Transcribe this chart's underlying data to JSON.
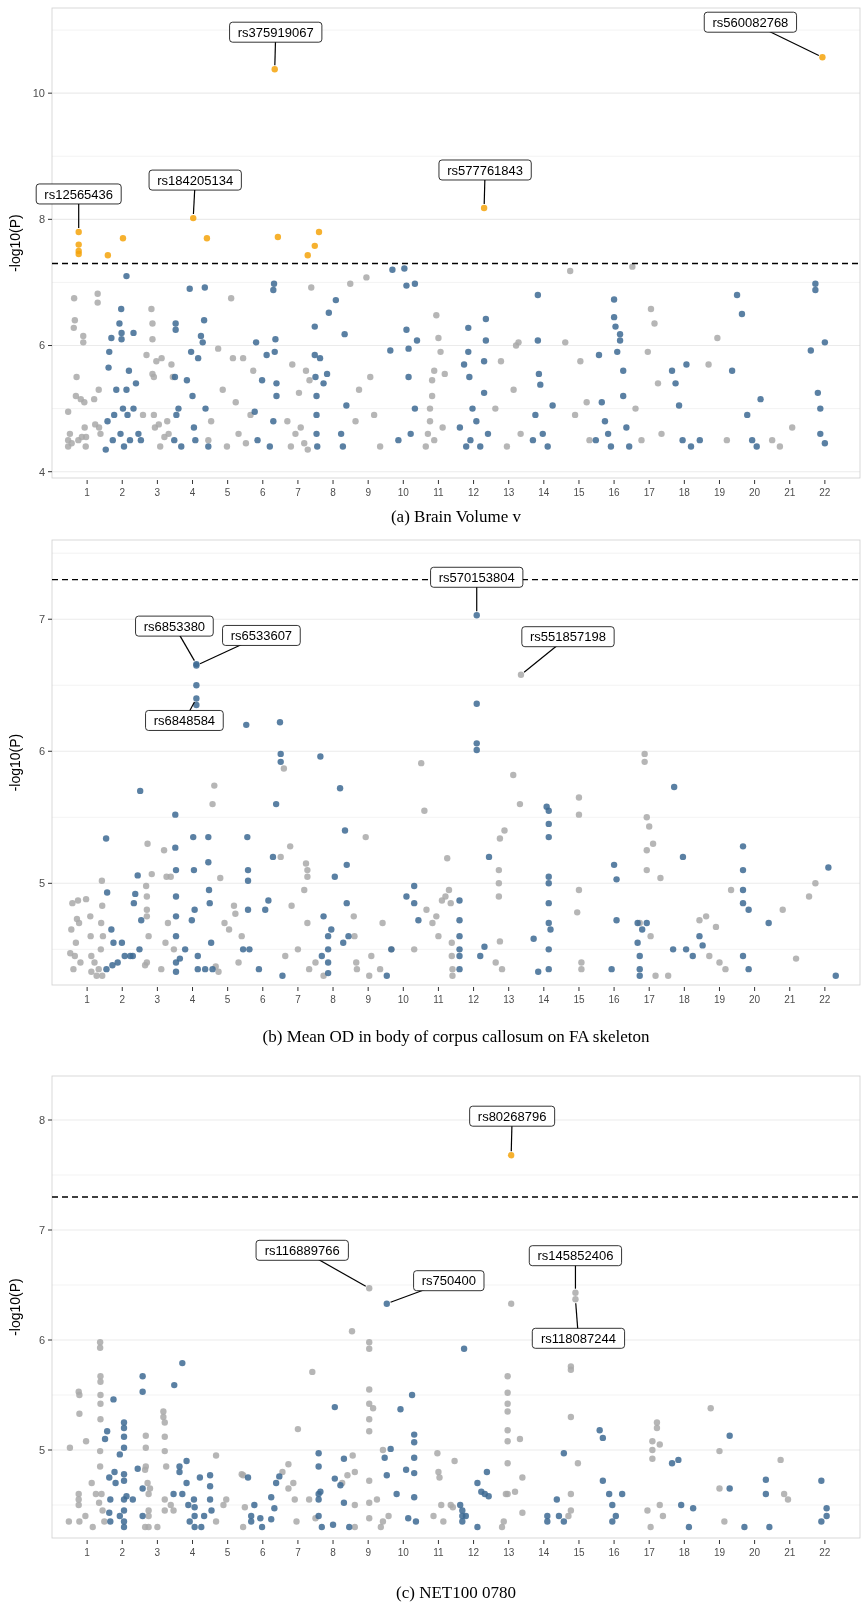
{
  "chart_data": [
    {
      "type": "scatter",
      "title": "(a) Brain Volume v",
      "ylabel": "-log10(P)",
      "xlim": [
        0,
        23
      ],
      "ylim": [
        3.9,
        11.35
      ],
      "xticks": [
        1,
        2,
        3,
        4,
        5,
        6,
        7,
        8,
        9,
        10,
        11,
        12,
        13,
        14,
        15,
        16,
        17,
        18,
        19,
        20,
        21,
        22
      ],
      "yticks": [
        4,
        {
          "value": 5,
          "label": null
        },
        6,
        {
          "value": 7,
          "label": null
        },
        8,
        {
          "value": 9,
          "label": null
        },
        10,
        {
          "value": 11,
          "label": null
        }
      ],
      "grid": "y",
      "marker": "circle",
      "ref_lines": [
        {
          "axis": "y",
          "value": 7.3,
          "color": "#000000",
          "line_style": "dashed"
        }
      ],
      "annotations": [
        {
          "text": "rs12565436",
          "x": 0.76,
          "y": 7.8
        },
        {
          "text": "rs184205134",
          "x": 4.02,
          "y": 8.02
        },
        {
          "text": "rs375919067",
          "x": 6.34,
          "y": 10.38
        },
        {
          "text": "rs577761843",
          "x": 12.3,
          "y": 8.18
        },
        {
          "text": "rs560082768",
          "x": 21.93,
          "y": 10.57
        }
      ],
      "series": [
        {
          "color": "#a9a9a9",
          "x": [
            0.46,
            0.46,
            0.46,
            0.51,
            0.56,
            0.63,
            0.62,
            0.65,
            0.68,
            0.7,
            0.75,
            0.82,
            0.85,
            0.89,
            0.89,
            0.92,
            0.93,
            0.96,
            0.97,
            1.2,
            1.23,
            1.3,
            1.3,
            1.33,
            1.34,
            1.38,
            2.59,
            2.69,
            2.83,
            2.86,
            2.86,
            2.86,
            2.9,
            2.9,
            2.93,
            2.97,
            3.04,
            3.08,
            3.12,
            3.2,
            3.28,
            3.32,
            3.4,
            3.44,
            4.45,
            4.53,
            4.73,
            4.86,
            4.98,
            5.1,
            5.15,
            5.23,
            5.31,
            5.44,
            5.52,
            5.65,
            5.73,
            6.7,
            6.8,
            6.84,
            6.93,
            7.03,
            7.08,
            7.18,
            7.23,
            7.38,
            7.33,
            7.28,
            8.49,
            8.64,
            8.74,
            8.95,
            9.06,
            9.17,
            9.34,
            10.64,
            10.7,
            10.76,
            10.76,
            10.82,
            10.82,
            10.88,
            10.88,
            10.94,
            11.0,
            11.06,
            11.12,
            11.18,
            12.62,
            12.78,
            12.95,
            13.14,
            13.21,
            13.28,
            13.34,
            14.61,
            14.75,
            14.89,
            15.04,
            15.22,
            15.3,
            16.52,
            16.61,
            16.78,
            16.96,
            17.05,
            17.15,
            17.25,
            17.35,
            18.69,
            18.94,
            19.21,
            20.5,
            20.72,
            21.07
          ],
          "values": [
            4.4,
            4.5,
            4.95,
            4.6,
            4.45,
            6.75,
            6.28,
            6.4,
            5.2,
            5.5,
            4.5,
            5.15,
            4.55,
            6.15,
            6.05,
            5.1,
            4.7,
            4.4,
            4.55,
            5.15,
            4.75,
            6.82,
            6.68,
            5.3,
            4.7,
            4.6,
            4.9,
            5.85,
            6.58,
            6.35,
            6.1,
            5.55,
            5.5,
            4.9,
            4.7,
            5.75,
            4.75,
            4.4,
            5.8,
            4.55,
            4.8,
            4.6,
            5.7,
            5.5,
            4.5,
            4.8,
            5.95,
            5.3,
            4.4,
            6.75,
            5.8,
            5.1,
            4.6,
            5.8,
            4.45,
            4.9,
            5.6,
            4.8,
            4.4,
            5.7,
            4.6,
            5.25,
            4.7,
            4.45,
            5.6,
            6.92,
            5.45,
            4.35,
            6.98,
            4.8,
            5.3,
            7.08,
            5.5,
            4.9,
            4.4,
            4.4,
            4.6,
            4.8,
            5.0,
            5.2,
            5.45,
            5.6,
            4.5,
            6.48,
            6.12,
            5.9,
            4.7,
            5.55,
            5.0,
            5.75,
            4.4,
            5.3,
            6.0,
            6.05,
            4.6,
            6.05,
            7.18,
            4.9,
            5.75,
            5.1,
            4.5,
            7.25,
            5.0,
            4.5,
            5.9,
            6.58,
            6.35,
            5.4,
            4.6,
            5.7,
            6.12,
            4.5,
            4.5,
            4.4,
            4.7
          ]
        },
        {
          "color": "#3d6a93",
          "x": [
            1.53,
            1.58,
            1.61,
            1.63,
            1.69,
            1.73,
            1.77,
            1.83,
            1.92,
            1.95,
            1.97,
            1.98,
            1.98,
            2.02,
            2.05,
            2.12,
            2.12,
            2.15,
            2.19,
            2.22,
            2.32,
            2.32,
            2.39,
            2.46,
            2.53,
            3.48,
            3.5,
            3.52,
            3.52,
            3.54,
            3.6,
            3.68,
            3.84,
            3.92,
            3.96,
            4.0,
            4.04,
            4.08,
            4.16,
            4.24,
            4.29,
            4.33,
            4.35,
            4.37,
            4.45,
            5.77,
            5.81,
            5.85,
            5.98,
            6.11,
            6.2,
            6.3,
            6.32,
            6.34,
            6.36,
            6.39,
            6.39,
            6.3,
            7.48,
            7.48,
            7.5,
            7.53,
            7.53,
            7.53,
            7.55,
            7.63,
            7.73,
            7.83,
            7.88,
            8.08,
            8.23,
            8.28,
            8.33,
            8.38,
            9.63,
            9.69,
            9.86,
            10.03,
            10.09,
            10.09,
            10.15,
            10.15,
            10.21,
            10.33,
            10.39,
            10.33,
            11.61,
            11.73,
            11.79,
            11.85,
            11.85,
            11.88,
            11.91,
            11.97,
            12.08,
            12.19,
            12.3,
            12.35,
            12.35,
            12.3,
            12.41,
            13.69,
            13.76,
            13.83,
            13.83,
            13.86,
            13.9,
            13.97,
            14.11,
            14.25,
            15.48,
            15.57,
            15.65,
            15.74,
            15.83,
            15.91,
            16.0,
            16.0,
            16.04,
            16.09,
            16.17,
            16.17,
            16.26,
            16.26,
            16.35,
            16.43,
            17.65,
            17.75,
            17.85,
            17.95,
            18.06,
            18.19,
            18.44,
            19.36,
            19.5,
            19.64,
            19.79,
            19.93,
            20.17,
            20.06,
            21.6,
            21.73,
            21.73,
            21.8,
            21.87,
            21.87,
            22.0,
            22.0
          ],
          "values": [
            4.35,
            4.8,
            5.65,
            5.9,
            6.12,
            4.5,
            4.9,
            5.3,
            6.35,
            4.6,
            6.58,
            6.2,
            6.1,
            5.0,
            4.4,
            7.1,
            5.3,
            4.9,
            5.6,
            4.5,
            6.2,
            5.0,
            5.4,
            4.6,
            4.5,
            4.5,
            5.5,
            6.35,
            6.25,
            4.9,
            5.0,
            4.4,
            5.45,
            6.9,
            5.9,
            5.2,
            4.7,
            4.5,
            5.8,
            6.15,
            6.05,
            6.4,
            6.92,
            5.0,
            4.4,
            4.95,
            6.05,
            4.5,
            5.45,
            5.85,
            4.4,
            6.88,
            6.98,
            5.9,
            6.1,
            5.4,
            5.2,
            4.8,
            6.3,
            5.85,
            5.5,
            5.2,
            4.9,
            4.6,
            4.4,
            5.8,
            5.4,
            5.55,
            6.52,
            6.72,
            4.6,
            4.4,
            6.18,
            5.05,
            5.92,
            7.2,
            4.5,
            7.22,
            6.95,
            6.25,
            5.95,
            5.5,
            4.6,
            6.98,
            6.08,
            5.0,
            4.7,
            5.7,
            4.4,
            6.28,
            5.9,
            5.5,
            4.5,
            5.0,
            4.8,
            4.4,
            5.75,
            6.42,
            6.08,
            5.25,
            4.6,
            4.5,
            4.9,
            6.8,
            6.08,
            5.55,
            5.38,
            4.6,
            4.4,
            5.05,
            4.5,
            5.85,
            5.1,
            4.8,
            4.6,
            4.4,
            6.73,
            6.45,
            6.3,
            5.9,
            6.18,
            6.08,
            5.6,
            5.2,
            4.7,
            4.4,
            5.6,
            5.4,
            5.05,
            4.5,
            5.7,
            4.4,
            4.5,
            5.6,
            6.8,
            6.5,
            4.9,
            4.5,
            5.15,
            4.4,
            5.92,
            6.98,
            6.88,
            5.25,
            5.0,
            4.6,
            6.05,
            4.45
          ]
        },
        {
          "color": "#f5a30a",
          "x": [
            0.76,
            0.76,
            0.76,
            0.76,
            1.59,
            2.02,
            4.02,
            4.41,
            6.34,
            6.43,
            7.28,
            7.48,
            7.6,
            12.3,
            21.93
          ],
          "values": [
            7.8,
            7.6,
            7.5,
            7.45,
            7.43,
            7.7,
            8.02,
            7.7,
            10.38,
            7.72,
            7.43,
            7.58,
            7.8,
            8.18,
            10.57
          ]
        }
      ]
    },
    {
      "type": "scatter",
      "title": "(b) Mean OD in body of corpus callosum on FA skeleton",
      "ylabel": "-log10(P)",
      "xlim": [
        0,
        23
      ],
      "ylim": [
        4.23,
        7.6
      ],
      "xticks": [
        1,
        2,
        3,
        4,
        5,
        6,
        7,
        8,
        9,
        10,
        11,
        12,
        13,
        14,
        15,
        16,
        17,
        18,
        19,
        20,
        21,
        22
      ],
      "yticks": [
        {
          "value": 4.5,
          "label": null
        },
        5,
        {
          "value": 5.5,
          "label": null
        },
        6,
        {
          "value": 6.5,
          "label": null
        },
        7,
        {
          "value": 7.5,
          "label": null
        }
      ],
      "grid": "y",
      "marker": "circle",
      "ref_lines": [
        {
          "axis": "y",
          "value": 7.3,
          "color": "#000000",
          "line_style": "dashed"
        }
      ],
      "annotations": [
        {
          "text": "rs570153804",
          "x": 12.09,
          "y": 7.03
        },
        {
          "text": "rs6853380",
          "x": 4.11,
          "y": 6.66
        },
        {
          "text": "rs6533607",
          "x": 4.11,
          "y": 6.65
        },
        {
          "text": "rs6848584",
          "x": 4.11,
          "y": 6.4
        },
        {
          "text": "rs551857198",
          "x": 13.35,
          "y": 6.58
        }
      ],
      "series": [
        {
          "color": "#a9a9a9",
          "x": [
            0.52,
            0.55,
            0.58,
            0.61,
            0.65,
            0.68,
            0.71,
            0.74,
            0.77,
            0.81,
            0.97,
            1.09,
            1.1,
            1.12,
            1.12,
            1.21,
            1.27,
            1.33,
            1.39,
            1.4,
            1.42,
            1.43,
            1.45,
            1.43,
            2.65,
            2.68,
            2.7,
            2.7,
            2.7,
            2.72,
            2.75,
            2.7,
            2.84,
            3.11,
            3.19,
            3.23,
            3.26,
            3.3,
            3.38,
            3.47,
            4.57,
            4.62,
            4.66,
            4.74,
            4.79,
            4.91,
            5.04,
            5.18,
            5.22,
            5.31,
            5.4,
            6.51,
            6.6,
            6.64,
            6.78,
            6.82,
            7.0,
            7.18,
            7.23,
            7.27,
            7.27,
            7.27,
            7.32,
            7.5,
            7.73,
            8.59,
            8.61,
            8.66,
            8.68,
            8.93,
            9.03,
            9.09,
            9.34,
            9.41,
            9.66,
            10.31,
            10.51,
            10.66,
            11.1,
            11.2,
            11.25,
            11.3,
            11.35,
            11.38,
            11.38,
            11.4,
            11.4,
            10.83,
            11.0,
            10.6,
            10.94,
            12.63,
            12.72,
            12.72,
            12.72,
            12.75,
            12.75,
            12.81,
            12.88,
            13.13,
            13.32,
            13.35,
            14.95,
            15.0,
            15.0,
            15.0,
            15.07,
            15.07,
            16.73,
            16.87,
            16.87,
            16.93,
            16.93,
            16.93,
            17.0,
            17.04,
            17.11,
            17.18,
            17.32,
            17.54,
            18.43,
            18.62,
            18.71,
            18.9,
            19.0,
            19.17,
            19.33,
            20.8,
            21.18,
            21.55,
            21.73
          ],
          "values": [
            4.47,
            4.65,
            4.85,
            4.35,
            4.45,
            4.55,
            4.73,
            4.87,
            4.7,
            4.4,
            4.88,
            4.75,
            4.6,
            4.45,
            4.33,
            4.4,
            4.3,
            4.35,
            4.5,
            4.7,
            5.02,
            4.83,
            4.6,
            4.3,
            4.38,
            4.98,
            4.9,
            4.8,
            4.75,
            5.3,
            4.6,
            4.4,
            5.07,
            4.35,
            5.25,
            4.55,
            5.05,
            4.7,
            5.05,
            4.5,
            5.6,
            5.74,
            4.37,
            4.33,
            5.04,
            4.7,
            4.65,
            4.83,
            4.77,
            4.4,
            4.6,
            5.2,
            5.87,
            4.45,
            5.28,
            4.83,
            4.5,
            4.95,
            5.15,
            5.1,
            5.05,
            4.7,
            4.35,
            4.4,
            4.3,
            4.75,
            4.6,
            4.4,
            4.35,
            5.35,
            4.3,
            4.45,
            4.35,
            4.7,
            4.5,
            4.5,
            5.91,
            4.8,
            4.87,
            4.9,
            5.19,
            4.95,
            4.85,
            4.55,
            4.45,
            4.35,
            4.3,
            4.7,
            4.6,
            5.55,
            4.75,
            4.4,
            5.1,
            5.0,
            4.9,
            5.34,
            4.56,
            4.35,
            5.4,
            5.82,
            5.6,
            6.58,
            4.78,
            4.95,
            5.65,
            5.52,
            4.4,
            4.35,
            4.7,
            5.98,
            5.92,
            5.5,
            5.25,
            5.1,
            5.43,
            4.6,
            5.3,
            4.3,
            5.04,
            4.3,
            4.72,
            4.75,
            4.45,
            4.67,
            4.4,
            4.35,
            4.95,
            4.8,
            4.43,
            4.9,
            5.0
          ]
        },
        {
          "color": "#3d6a93",
          "x": [
            1.54,
            1.55,
            1.57,
            1.69,
            1.72,
            1.75,
            1.87,
            1.99,
            2.07,
            2.23,
            2.3,
            2.33,
            2.37,
            2.44,
            2.49,
            2.51,
            2.54,
            3.51,
            3.51,
            3.53,
            3.53,
            3.53,
            3.53,
            3.53,
            3.53,
            3.64,
            3.79,
            3.98,
            4.02,
            4.04,
            4.06,
            4.11,
            4.11,
            4.11,
            4.11,
            4.11,
            4.15,
            4.15,
            4.36,
            4.45,
            4.45,
            4.47,
            4.49,
            4.53,
            4.57,
            5.44,
            5.53,
            5.56,
            5.58,
            5.58,
            5.58,
            5.62,
            5.89,
            6.07,
            6.16,
            6.29,
            6.38,
            6.49,
            6.51,
            6.51,
            6.56,
            7.64,
            7.68,
            7.73,
            7.86,
            7.86,
            7.86,
            7.86,
            7.95,
            8.05,
            8.2,
            8.29,
            8.34,
            8.39,
            8.39,
            8.44,
            9.53,
            9.66,
            10.09,
            10.31,
            10.31,
            10.43,
            11.6,
            11.6,
            11.6,
            11.6,
            11.6,
            11.6,
            12.09,
            12.09,
            12.09,
            12.09,
            12.19,
            12.31,
            12.44,
            13.71,
            13.84,
            14.08,
            14.14,
            14.14,
            14.14,
            14.14,
            14.14,
            14.14,
            14.14,
            14.14,
            14.14,
            14.19,
            15.93,
            16.0,
            16.07,
            16.07,
            16.67,
            16.67,
            16.73,
            16.73,
            16.73,
            16.8,
            16.93,
            17.71,
            17.68,
            17.96,
            18.05,
            18.24,
            18.43,
            18.52,
            19.67,
            19.67,
            19.67,
            19.67,
            19.83,
            19.67,
            19.83,
            20.4,
            22.1,
            22.31
          ],
          "values": [
            5.34,
            4.35,
            4.93,
            4.65,
            4.38,
            4.55,
            4.4,
            4.55,
            4.45,
            4.45,
            4.45,
            4.85,
            4.92,
            5.06,
            4.5,
            5.7,
            4.72,
            5.52,
            5.27,
            5.1,
            4.9,
            4.75,
            4.6,
            4.4,
            4.33,
            4.43,
            4.5,
            4.72,
            5.35,
            5.1,
            4.8,
            6.66,
            6.65,
            6.5,
            6.4,
            6.35,
            4.45,
            4.35,
            4.35,
            5.35,
            5.16,
            4.95,
            4.85,
            4.55,
            4.35,
            4.5,
            6.2,
            5.35,
            5.1,
            5.02,
            4.8,
            4.5,
            4.35,
            4.8,
            4.87,
            5.2,
            5.6,
            6.22,
            5.98,
            5.92,
            4.3,
            5.96,
            4.45,
            4.75,
            4.6,
            4.5,
            4.4,
            4.32,
            4.65,
            5.05,
            5.72,
            4.55,
            5.4,
            4.85,
            5.14,
            4.6,
            4.3,
            4.5,
            4.9,
            4.85,
            4.98,
            4.72,
            4.45,
            4.6,
            4.72,
            4.87,
            4.5,
            4.35,
            7.03,
            6.36,
            6.06,
            6.01,
            4.45,
            4.52,
            5.2,
            4.58,
            4.33,
            5.58,
            5.55,
            5.45,
            5.35,
            5.05,
            5.0,
            4.85,
            4.7,
            4.5,
            4.35,
            4.65,
            4.35,
            5.14,
            4.72,
            5.03,
            4.7,
            4.55,
            4.45,
            4.35,
            4.3,
            4.65,
            4.7,
            5.73,
            4.5,
            5.2,
            4.5,
            4.45,
            4.6,
            4.53,
            5.28,
            5.1,
            4.95,
            4.85,
            4.8,
            4.45,
            4.35,
            4.7,
            5.12,
            4.3
          ]
        }
      ]
    },
    {
      "type": "scatter",
      "title": "(c) NET100 0780",
      "ylabel": "-log10(P)",
      "xlim": [
        0,
        23
      ],
      "ylim": [
        4.2,
        8.4
      ],
      "xticks": [
        1,
        2,
        3,
        4,
        5,
        6,
        7,
        8,
        9,
        10,
        11,
        12,
        13,
        14,
        15,
        16,
        17,
        18,
        19,
        20,
        21,
        22
      ],
      "yticks": [
        {
          "value": 4.5,
          "label": null
        },
        5,
        {
          "value": 5.5,
          "label": null
        },
        6,
        {
          "value": 6.5,
          "label": null
        },
        7,
        {
          "value": 7.5,
          "label": null
        },
        8
      ],
      "grid": "y",
      "marker": "circle",
      "ref_lines": [
        {
          "axis": "y",
          "value": 7.3,
          "color": "#000000",
          "line_style": "dashed"
        }
      ],
      "annotations": [
        {
          "text": "rs80268796",
          "x": 13.07,
          "y": 7.68
        },
        {
          "text": "rs116889766",
          "x": 9.03,
          "y": 6.47
        },
        {
          "text": "rs750400",
          "x": 9.53,
          "y": 6.33
        },
        {
          "text": "rs145852406",
          "x": 14.9,
          "y": 6.43
        },
        {
          "text": "rs118087244",
          "x": 14.9,
          "y": 6.37
        }
      ],
      "series": [
        {
          "color": "#a9a9a9",
          "x": [
            0.48,
            0.51,
            0.76,
            0.78,
            0.78,
            0.76,
            0.76,
            0.76,
            0.78,
            0.97,
            0.95,
            1.13,
            1.16,
            1.25,
            1.34,
            1.37,
            1.37,
            1.38,
            1.38,
            1.38,
            1.38,
            1.38,
            1.37,
            1.37,
            1.41,
            1.44,
            1.49,
            2.65,
            2.65,
            2.67,
            2.67,
            2.67,
            2.72,
            2.75,
            2.75,
            2.75,
            2.75,
            2.79,
            3.0,
            3.17,
            3.17,
            3.21,
            3.21,
            3.21,
            3.21,
            3.21,
            3.25,
            3.38,
            3.46,
            4.67,
            4.67,
            4.88,
            4.96,
            5.4,
            5.44,
            5.49,
            5.44,
            6.56,
            6.73,
            6.73,
            6.87,
            6.91,
            6.96,
            7.0,
            7.32,
            7.41,
            7.5,
            8.26,
            8.41,
            8.54,
            8.56,
            8.62,
            8.62,
            8.62,
            9.03,
            9.03,
            9.03,
            9.03,
            9.03,
            9.03,
            9.03,
            9.03,
            9.03,
            9.03,
            9.14,
            9.25,
            9.36,
            9.42,
            9.42,
            9.58,
            10.86,
            10.97,
            11.0,
            11.03,
            11.08,
            11.14,
            11.35,
            11.41,
            11.46,
            12.81,
            12.86,
            12.92,
            12.97,
            12.97,
            12.97,
            12.97,
            12.97,
            12.97,
            12.97,
            12.97,
            13.07,
            13.18,
            13.32,
            13.39,
            13.39,
            14.7,
            14.77,
            14.77,
            14.77,
            14.77,
            14.77,
            14.9,
            14.9,
            14.97,
            16.95,
            17.04,
            17.09,
            17.09,
            17.09,
            17.22,
            17.22,
            17.3,
            17.3,
            17.39,
            18.75,
            19.0,
            19.0,
            19.14,
            20.74,
            20.84,
            20.95
          ],
          "values": [
            4.35,
            5.02,
            5.53,
            5.5,
            5.33,
            4.6,
            4.55,
            4.5,
            4.35,
            5.08,
            4.4,
            4.7,
            4.3,
            4.6,
            4.52,
            5.98,
            5.93,
            5.67,
            5.62,
            5.5,
            5.42,
            5.28,
            4.99,
            4.85,
            4.6,
            4.45,
            4.35,
            4.3,
            4.82,
            4.85,
            5.13,
            5.02,
            4.7,
            4.6,
            4.45,
            4.4,
            4.3,
            4.65,
            4.3,
            5.35,
            5.3,
            5.25,
            5.12,
            4.99,
            4.55,
            4.45,
            4.85,
            4.5,
            4.45,
            4.95,
            4.35,
            4.5,
            4.55,
            4.78,
            4.77,
            4.48,
            4.3,
            4.8,
            4.87,
            4.65,
            4.7,
            4.55,
            4.35,
            5.19,
            4.55,
            5.71,
            4.38,
            4.7,
            4.77,
            6.08,
            4.95,
            4.8,
            4.5,
            4.3,
            6.47,
            5.98,
            5.92,
            5.55,
            5.42,
            5.28,
            5.17,
            4.72,
            4.52,
            4.38,
            5.38,
            4.55,
            4.3,
            4.35,
            5.0,
            4.4,
            4.4,
            4.97,
            4.8,
            4.75,
            4.5,
            4.35,
            4.5,
            4.48,
            4.9,
            4.3,
            4.35,
            4.6,
            5.67,
            5.52,
            5.42,
            5.35,
            5.18,
            5.08,
            4.88,
            4.6,
            6.33,
            4.62,
            5.1,
            4.75,
            4.43,
            4.4,
            5.76,
            5.73,
            5.3,
            4.6,
            4.45,
            6.43,
            6.37,
            4.88,
            4.45,
            4.3,
            5.08,
            5.0,
            4.92,
            5.25,
            5.2,
            5.05,
            4.5,
            4.4,
            5.38,
            4.99,
            4.65,
            4.35,
            4.91,
            4.6,
            4.55
          ]
        },
        {
          "color": "#3d6a93",
          "x": [
            1.51,
            1.57,
            1.63,
            1.63,
            1.66,
            1.66,
            1.75,
            1.78,
            1.81,
            1.93,
            1.93,
            2.05,
            2.05,
            2.05,
            2.05,
            2.05,
            2.05,
            2.05,
            2.05,
            2.05,
            2.05,
            2.12,
            2.3,
            2.44,
            2.58,
            2.58,
            2.58,
            2.58,
            3.46,
            3.48,
            3.63,
            3.63,
            3.71,
            3.71,
            3.83,
            3.83,
            3.88,
            3.92,
            4.04,
            4.06,
            4.06,
            4.06,
            4.21,
            4.25,
            4.33,
            4.5,
            4.5,
            4.5,
            4.54,
            5.58,
            5.67,
            5.67,
            5.76,
            5.93,
            5.98,
            6.24,
            6.24,
            6.33,
            6.38,
            6.47,
            7.59,
            7.59,
            7.59,
            7.59,
            7.59,
            7.68,
            7.64,
            8.0,
            8.05,
            8.05,
            8.21,
            8.31,
            8.31,
            8.46,
            9.53,
            9.53,
            9.47,
            9.64,
            9.81,
            9.92,
            10.08,
            10.14,
            10.25,
            10.31,
            10.31,
            10.31,
            10.31,
            10.31,
            10.36,
            11.62,
            11.68,
            11.68,
            11.68,
            11.73,
            11.78,
            12.11,
            12.22,
            12.32,
            12.38,
            12.43,
            12.11,
            14.1,
            14.1,
            14.37,
            14.43,
            14.57,
            14.57,
            15.59,
            15.68,
            15.68,
            15.86,
            15.95,
            16.05,
            15.95,
            16.23,
            17.65,
            17.83,
            17.91,
            18.13,
            18.25,
            19.29,
            19.29,
            19.71,
            20.32,
            20.32,
            20.42,
            21.9,
            21.9,
            22.05,
            22.05
          ],
          "values": [
            5.1,
            5.17,
            4.75,
            4.43,
            4.35,
            4.55,
            5.46,
            4.8,
            4.7,
            4.96,
            4.4,
            5.25,
            5.2,
            5.12,
            5.02,
            4.78,
            4.72,
            4.55,
            4.45,
            4.35,
            4.3,
            4.58,
            4.55,
            4.83,
            5.67,
            5.53,
            4.65,
            4.4,
            4.6,
            5.59,
            4.85,
            4.8,
            5.79,
            4.6,
            4.9,
            4.7,
            4.5,
            4.35,
            4.55,
            4.48,
            4.4,
            4.3,
            4.75,
            4.3,
            4.4,
            4.77,
            4.67,
            4.55,
            4.45,
            4.75,
            4.4,
            4.35,
            4.5,
            4.38,
            4.3,
            4.37,
            4.57,
            4.47,
            4.7,
            4.76,
            4.97,
            4.85,
            4.6,
            4.55,
            4.4,
            4.3,
            4.62,
            4.32,
            5.39,
            4.74,
            4.68,
            4.92,
            4.52,
            4.3,
            6.33,
            4.77,
            4.93,
            5.01,
            4.6,
            5.37,
            4.82,
            4.38,
            5.5,
            5.14,
            5.07,
            4.93,
            4.79,
            4.57,
            4.35,
            4.5,
            4.45,
            4.4,
            4.35,
            5.92,
            4.4,
            4.7,
            4.62,
            4.6,
            4.8,
            4.58,
            4.3,
            4.4,
            4.35,
            4.55,
            4.4,
            4.97,
            4.35,
            5.18,
            5.11,
            4.72,
            4.6,
            4.5,
            4.4,
            4.35,
            4.6,
            4.88,
            4.91,
            4.5,
            4.3,
            4.47,
            5.13,
            4.65,
            4.3,
            4.73,
            4.6,
            4.3,
            4.72,
            4.35,
            4.47,
            4.4
          ]
        },
        {
          "color": "#f5a30a",
          "x": [
            13.07
          ],
          "values": [
            7.68
          ]
        }
      ]
    }
  ]
}
